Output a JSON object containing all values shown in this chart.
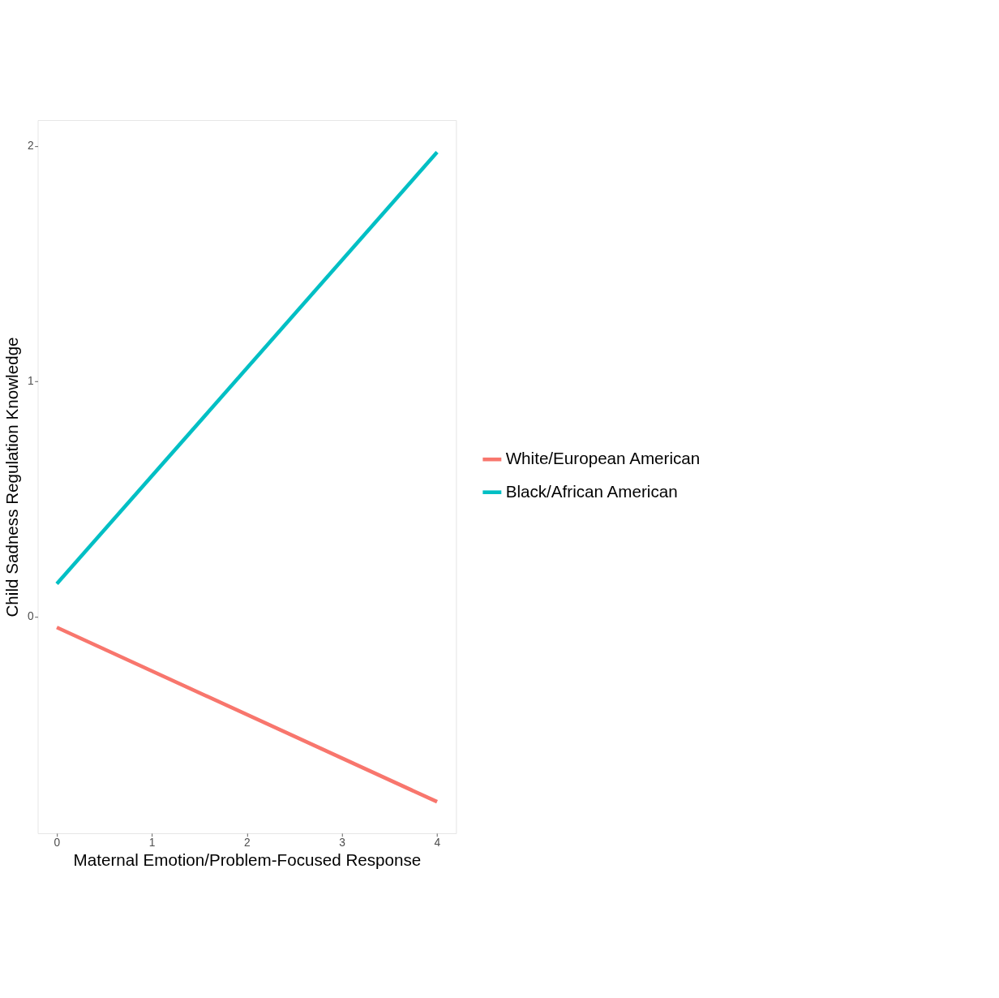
{
  "chart_data": {
    "type": "line",
    "xlabel": "Maternal Emotion/Problem-Focused Response",
    "ylabel": "Child Sadness Regulation Knowledge",
    "x": [
      0,
      4
    ],
    "series": [
      {
        "name": "White/European American",
        "color": "#f8766d",
        "values": [
          -0.045,
          -0.786
        ]
      },
      {
        "name": "Black/African American",
        "color": "#00bfc4",
        "values": [
          0.14,
          1.974
        ]
      }
    ],
    "xlim": [
      -0.2,
      4.2
    ],
    "xticks": [
      0,
      1,
      2,
      3,
      4
    ],
    "ylim": [
      -0.92,
      2.11
    ],
    "yticks": [
      0,
      1,
      2
    ],
    "grid": false,
    "legend": "right",
    "marker": "none",
    "line_style": "solid"
  }
}
